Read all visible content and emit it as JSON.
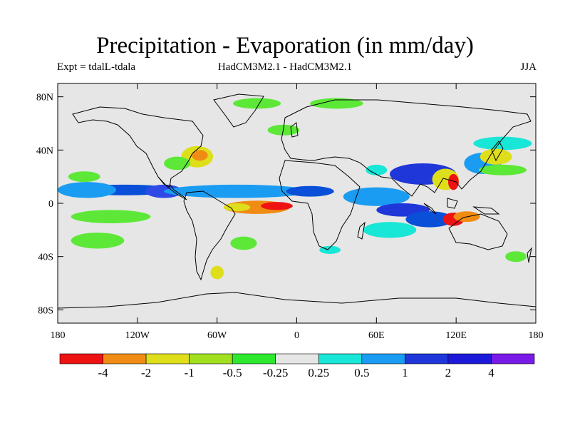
{
  "title": "Precipitation - Evaporation (in mm/day)",
  "subtitle_left": "Expt = tdalL-tdala",
  "subtitle_center": "HadCM3M2.1 - HadCM3M2.1",
  "subtitle_right": "JJA",
  "map": {
    "lon_range": [
      -180,
      180
    ],
    "lat_range": [
      -90,
      90
    ],
    "background_color": "#e6e6e6",
    "lat_ticks": [
      {
        "lat": 80,
        "label": "80N"
      },
      {
        "lat": 40,
        "label": "40N"
      },
      {
        "lat": 0,
        "label": "0"
      },
      {
        "lat": -40,
        "label": "40S"
      },
      {
        "lat": -80,
        "label": "80S"
      }
    ],
    "lon_ticks": [
      {
        "lon": -180,
        "label": "180"
      },
      {
        "lon": -120,
        "label": "120W"
      },
      {
        "lon": -60,
        "label": "60W"
      },
      {
        "lon": 0,
        "label": "0"
      },
      {
        "lon": 60,
        "label": "60E"
      },
      {
        "lon": 120,
        "label": "120E"
      },
      {
        "lon": 180,
        "label": "180"
      }
    ],
    "anomaly_regions": [
      {
        "lon": -130,
        "lat": 10,
        "rlon": 40,
        "rlat": 4,
        "color": "#0a4fd8"
      },
      {
        "lon": -158,
        "lat": 10,
        "rlon": 22,
        "rlat": 6,
        "color": "#1a9cf2"
      },
      {
        "lon": -100,
        "lat": 9,
        "rlon": 14,
        "rlat": 5,
        "color": "#2f49e6"
      },
      {
        "lon": -45,
        "lat": 9,
        "rlon": 55,
        "rlat": 5,
        "color": "#1a9cf2"
      },
      {
        "lon": 10,
        "lat": 9,
        "rlon": 18,
        "rlat": 4,
        "color": "#0a4fd8"
      },
      {
        "lon": 60,
        "lat": 5,
        "rlon": 25,
        "rlat": 7,
        "color": "#1a9cf2"
      },
      {
        "lon": 95,
        "lat": 22,
        "rlon": 25,
        "rlat": 8,
        "color": "#1f37d8"
      },
      {
        "lon": 80,
        "lat": -5,
        "rlon": 20,
        "rlat": 5,
        "color": "#1f37d8"
      },
      {
        "lon": 100,
        "lat": -12,
        "rlon": 18,
        "rlat": 6,
        "color": "#0a4fd8"
      },
      {
        "lon": 140,
        "lat": 30,
        "rlon": 14,
        "rlat": 8,
        "color": "#1a9cf2"
      },
      {
        "lon": 70,
        "lat": -20,
        "rlon": 20,
        "rlat": 6,
        "color": "#18e6d6"
      },
      {
        "lon": 155,
        "lat": 45,
        "rlon": 22,
        "rlat": 5,
        "color": "#18e6d6"
      },
      {
        "lon": 60,
        "lat": 25,
        "rlon": 8,
        "rlat": 4,
        "color": "#18e6d6"
      },
      {
        "lon": -140,
        "lat": -10,
        "rlon": 30,
        "rlat": 5,
        "color": "#5de838"
      },
      {
        "lon": -150,
        "lat": -28,
        "rlon": 20,
        "rlat": 6,
        "color": "#5de838"
      },
      {
        "lon": -160,
        "lat": 20,
        "rlon": 12,
        "rlat": 4,
        "color": "#5de838"
      },
      {
        "lon": -75,
        "lat": 35,
        "rlon": 12,
        "rlat": 8,
        "color": "#dede1a"
      },
      {
        "lon": -73,
        "lat": 36,
        "rlon": 6,
        "rlat": 4,
        "color": "#f08c14"
      },
      {
        "lon": -90,
        "lat": 30,
        "rlon": 10,
        "rlat": 5,
        "color": "#5de838"
      },
      {
        "lon": -30,
        "lat": -3,
        "rlon": 25,
        "rlat": 5,
        "color": "#f08c14"
      },
      {
        "lon": -15,
        "lat": -2,
        "rlon": 12,
        "rlat": 3,
        "color": "#ee1212"
      },
      {
        "lon": -45,
        "lat": -3,
        "rlon": 10,
        "rlat": 3,
        "color": "#dede1a"
      },
      {
        "lon": 118,
        "lat": -12,
        "rlon": 8,
        "rlat": 5,
        "color": "#ee1212"
      },
      {
        "lon": 128,
        "lat": -10,
        "rlon": 10,
        "rlat": 4,
        "color": "#f08c14"
      },
      {
        "lon": 112,
        "lat": 18,
        "rlon": 10,
        "rlat": 8,
        "color": "#dede1a"
      },
      {
        "lon": 118,
        "lat": 16,
        "rlon": 4,
        "rlat": 6,
        "color": "#ee1212"
      },
      {
        "lon": 150,
        "lat": 35,
        "rlon": 12,
        "rlat": 6,
        "color": "#dede1a"
      },
      {
        "lon": 155,
        "lat": 25,
        "rlon": 18,
        "rlat": 4,
        "color": "#5de838"
      },
      {
        "lon": -10,
        "lat": 55,
        "rlon": 12,
        "rlat": 4,
        "color": "#5de838"
      },
      {
        "lon": -30,
        "lat": 75,
        "rlon": 18,
        "rlat": 4,
        "color": "#5de838"
      },
      {
        "lon": 30,
        "lat": 75,
        "rlon": 20,
        "rlat": 4,
        "color": "#5de838"
      },
      {
        "lon": -40,
        "lat": -30,
        "rlon": 10,
        "rlat": 5,
        "color": "#5de838"
      },
      {
        "lon": -60,
        "lat": -52,
        "rlon": 5,
        "rlat": 5,
        "color": "#dede1a"
      },
      {
        "lon": 25,
        "lat": -35,
        "rlon": 8,
        "rlat": 3,
        "color": "#18e6d6"
      },
      {
        "lon": 165,
        "lat": -40,
        "rlon": 8,
        "rlat": 4,
        "color": "#5de838"
      }
    ]
  },
  "colorbar": {
    "colors": [
      "#ee1212",
      "#f08c14",
      "#dede1a",
      "#a0e020",
      "#2de82d",
      "#e6e6e6",
      "#18e6d6",
      "#1a9cf2",
      "#1f37d8",
      "#1c1ad8",
      "#7a1ae6"
    ],
    "labels": [
      "-4",
      "-2",
      "-1",
      "-0.5",
      "-0.25",
      "0.25",
      "0.5",
      "1",
      "2",
      "4"
    ]
  }
}
